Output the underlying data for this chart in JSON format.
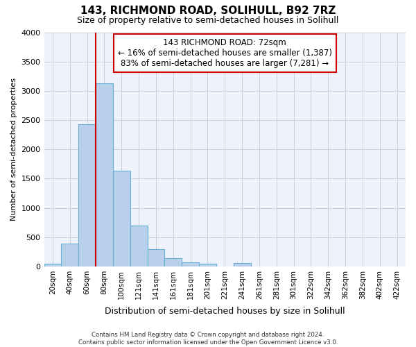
{
  "title": "143, RICHMOND ROAD, SOLIHULL, B92 7RZ",
  "subtitle": "Size of property relative to semi-detached houses in Solihull",
  "xlabel": "Distribution of semi-detached houses by size in Solihull",
  "ylabel": "Number of semi-detached properties",
  "categories": [
    "20sqm",
    "40sqm",
    "60sqm",
    "80sqm",
    "100sqm",
    "121sqm",
    "141sqm",
    "161sqm",
    "181sqm",
    "201sqm",
    "221sqm",
    "241sqm",
    "261sqm",
    "281sqm",
    "301sqm",
    "322sqm",
    "342sqm",
    "362sqm",
    "382sqm",
    "402sqm",
    "422sqm"
  ],
  "values": [
    50,
    390,
    2430,
    3130,
    1630,
    700,
    300,
    140,
    70,
    50,
    0,
    55,
    0,
    0,
    0,
    0,
    0,
    0,
    0,
    0,
    0
  ],
  "bar_color": "#b8d0eb",
  "bar_edge_color": "#6baed6",
  "property_line_color": "#cc0000",
  "property_line_bar_index": 3,
  "annotation_text": "143 RICHMOND ROAD: 72sqm\n← 16% of semi-detached houses are smaller (1,387)\n83% of semi-detached houses are larger (7,281) →",
  "annotation_box_color": "#ffffff",
  "annotation_box_edge_color": "#cc0000",
  "ylim": [
    0,
    4000
  ],
  "yticks": [
    0,
    500,
    1000,
    1500,
    2000,
    2500,
    3000,
    3500,
    4000
  ],
  "grid_color": "#c8d0dc",
  "background_color": "#eef2fa",
  "footer_line1": "Contains HM Land Registry data © Crown copyright and database right 2024.",
  "footer_line2": "Contains public sector information licensed under the Open Government Licence v3.0."
}
